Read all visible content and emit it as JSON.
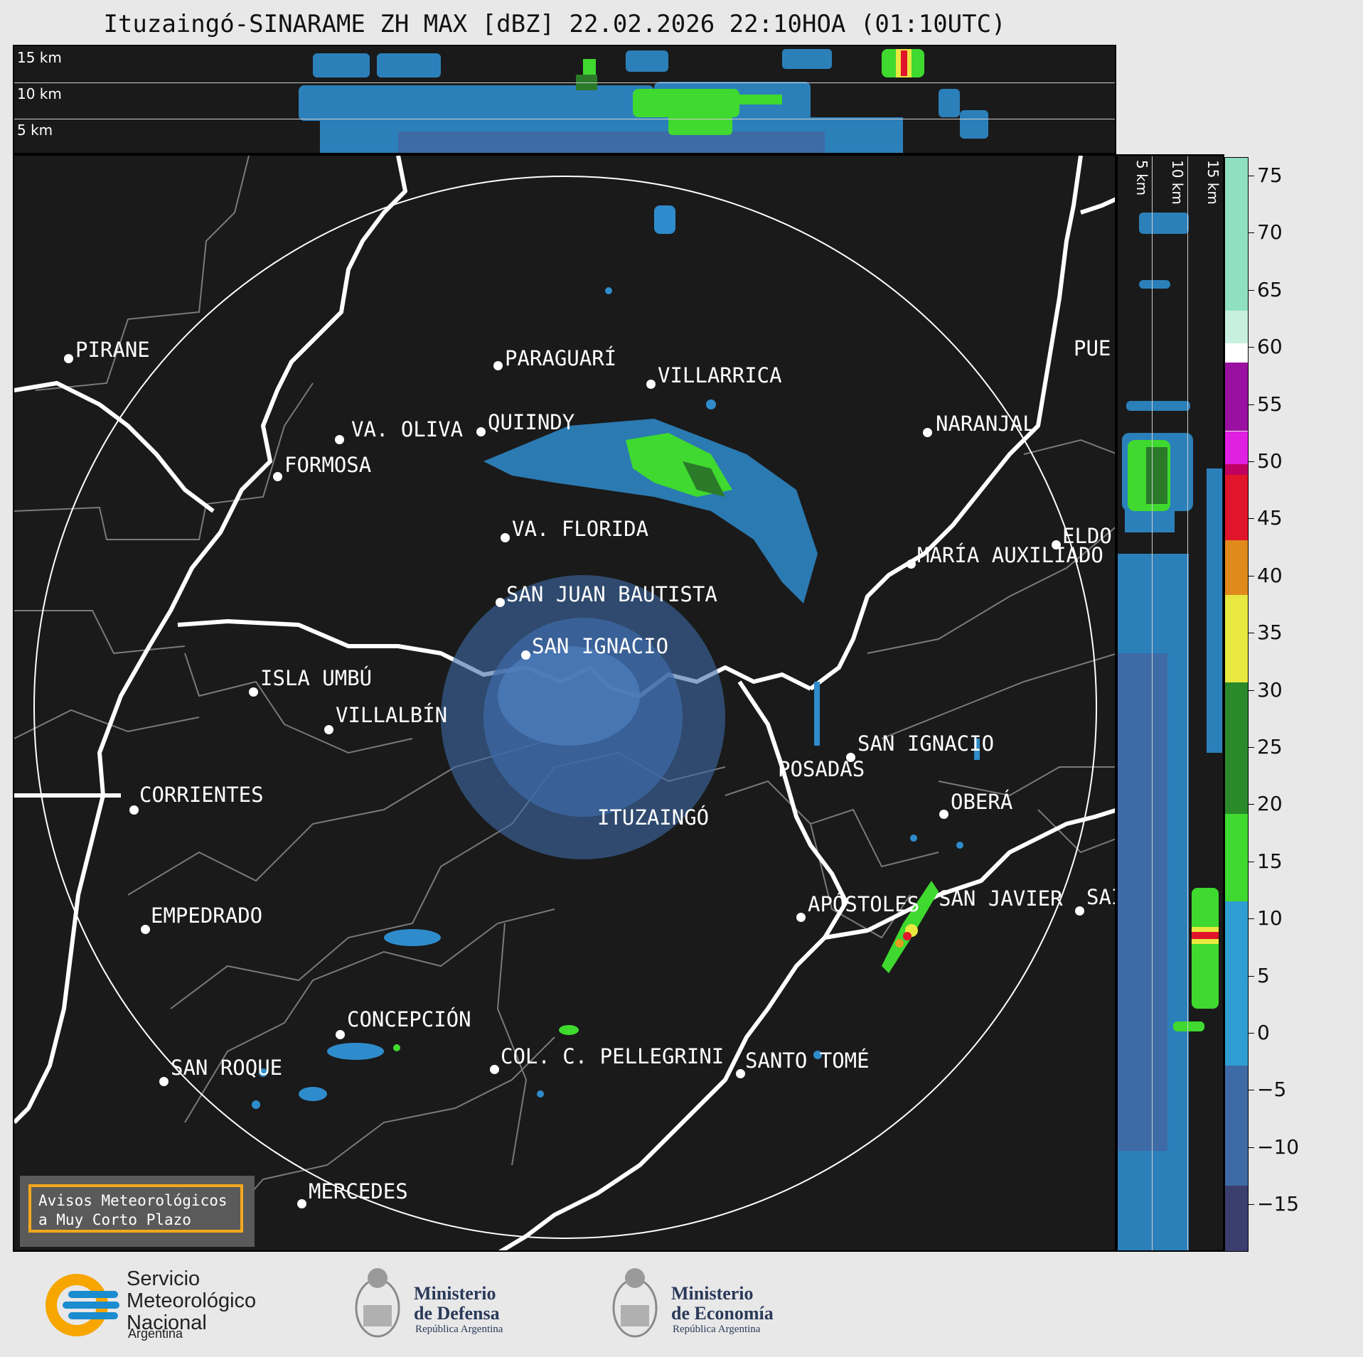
{
  "title": "Ituzaingó-SINARAME ZH MAX [dBZ] 22.02.2026 22:10HOA (01:10UTC)",
  "altitude_labels": {
    "top": [
      "15 km",
      "10 km",
      "5 km"
    ],
    "side": [
      "5 km",
      "10 km",
      "15 km"
    ]
  },
  "cities": [
    {
      "name": "PIRANE"
    },
    {
      "name": "PARAGUARÍ"
    },
    {
      "name": "VILLARRICA"
    },
    {
      "name": "QUIINDY"
    },
    {
      "name": "VA. OLIVA"
    },
    {
      "name": "FORMOSA"
    },
    {
      "name": "NARANJAL"
    },
    {
      "name": "PUE"
    },
    {
      "name": "VA. FLORIDA"
    },
    {
      "name": "ELDO"
    },
    {
      "name": "MARÍA AUXILIADO"
    },
    {
      "name": "SAN JUAN BAUTISTA"
    },
    {
      "name": "SAN IGNACIO"
    },
    {
      "name": "ISLA UMBÚ"
    },
    {
      "name": "VILLALBÍN"
    },
    {
      "name": "SAN IGNACIO"
    },
    {
      "name": "POSADAS"
    },
    {
      "name": "CORRIENTES"
    },
    {
      "name": "ITUZAINGÓ"
    },
    {
      "name": "OBERÁ"
    },
    {
      "name": "APÓSTOLES"
    },
    {
      "name": "SAN JAVIER"
    },
    {
      "name": "SAI"
    },
    {
      "name": "EMPEDRADO"
    },
    {
      "name": "CONCEPCIÓN"
    },
    {
      "name": "COL. C. PELLEGRINI"
    },
    {
      "name": "SANTO TOMÉ"
    },
    {
      "name": "SAN ROQUE"
    },
    {
      "name": "MERCEDES"
    }
  ],
  "colorbar": {
    "ticks": [
      "75",
      "70",
      "65",
      "60",
      "55",
      "50",
      "45",
      "40",
      "35",
      "30",
      "25",
      "20",
      "15",
      "10",
      "5",
      "0",
      "−5",
      "−10",
      "−15"
    ],
    "colors": {
      "low": "#3b3f6e",
      "mid_low": "#3e6aa6",
      "blue": "#2f9fd3",
      "green": "#3fd92f",
      "yellow": "#e8e840",
      "orange": "#e08a1c",
      "red": "#e0142a",
      "magenta": "#e020e0",
      "purple": "#9a10a0",
      "white": "#ffffff",
      "mint": "#8ee0c0"
    }
  },
  "avisos": {
    "line1": "Avisos Meteorológicos",
    "line2": "a Muy Corto Plazo"
  },
  "logos": {
    "smn": {
      "line1": "Servicio",
      "line2": "Meteorológico",
      "line3": "Nacional",
      "sub": "Argentina"
    },
    "defensa": {
      "line1": "Ministerio",
      "line2": "de Defensa",
      "sub": "República Argentina"
    },
    "economia": {
      "line1": "Ministerio",
      "line2": "de Economía",
      "sub": "República Argentina"
    }
  }
}
